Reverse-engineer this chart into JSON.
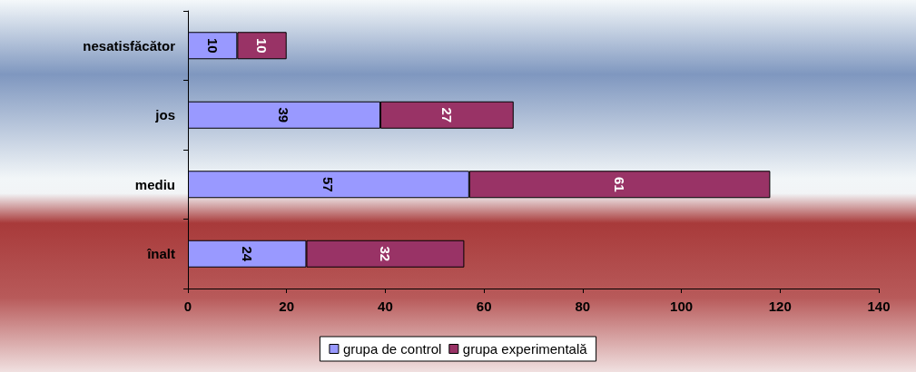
{
  "chart_data": {
    "type": "bar",
    "orientation": "horizontal",
    "stacked": true,
    "categories": [
      "nesatisfăcător",
      "jos",
      "mediu",
      "înalt"
    ],
    "series": [
      {
        "name": "grupa de control",
        "color": "#9999ff",
        "values": [
          10,
          39,
          57,
          24
        ]
      },
      {
        "name": "grupa experimentală",
        "color": "#993366",
        "values": [
          10,
          27,
          61,
          32
        ]
      }
    ],
    "xlim": [
      0,
      140
    ],
    "xticks": [
      0,
      20,
      40,
      60,
      80,
      100,
      120,
      140
    ],
    "data_labels": true,
    "grid": false,
    "legend": "bottom"
  }
}
